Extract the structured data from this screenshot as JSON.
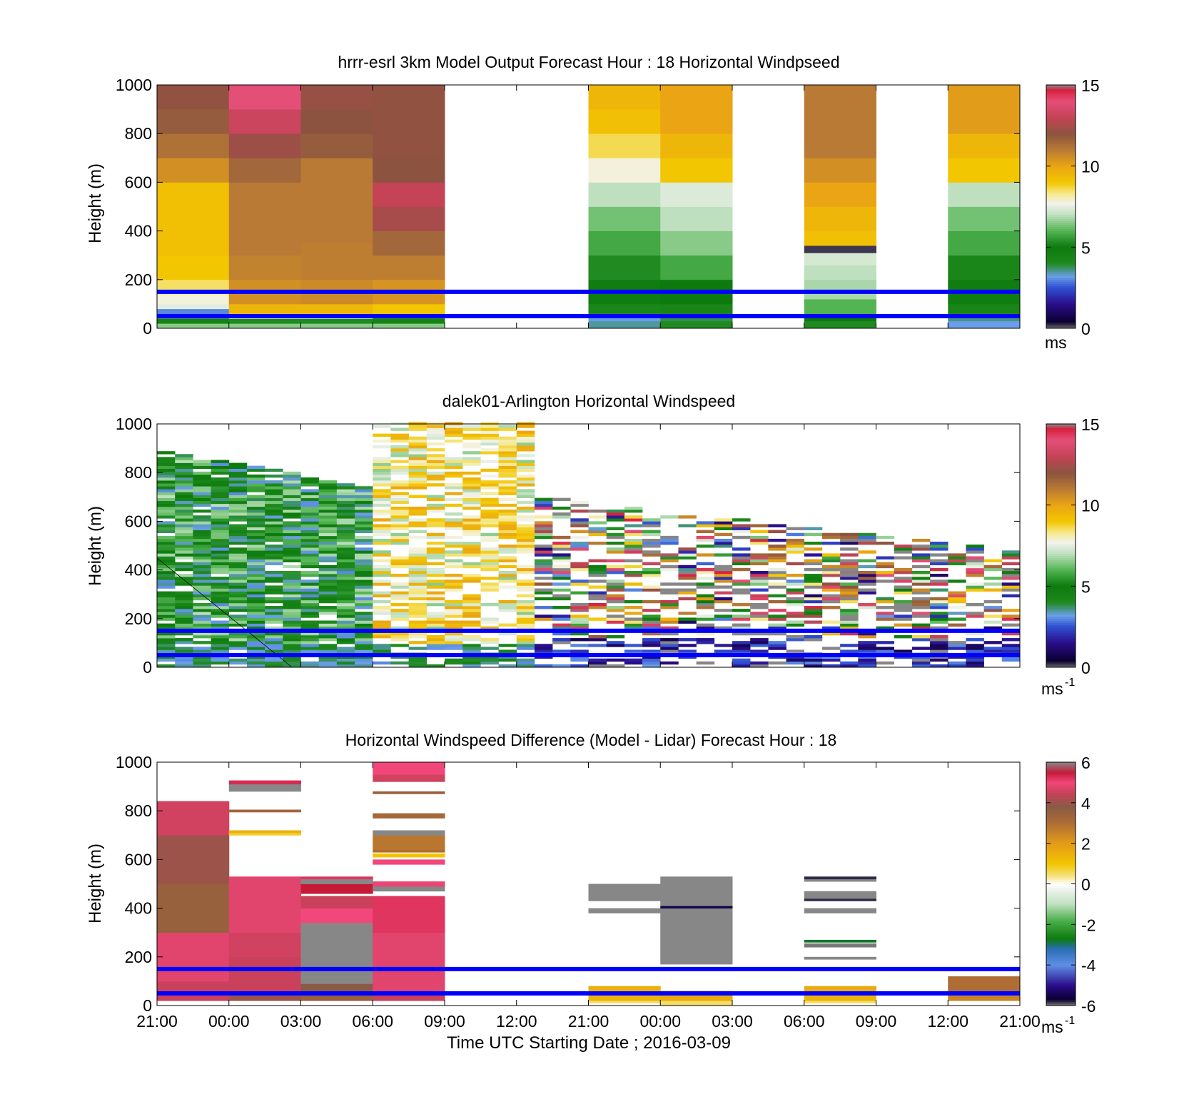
{
  "x_ticks": [
    "21:00",
    "00:00",
    "03:00",
    "06:00",
    "09:00",
    "12:00",
    "21:00",
    "00:00",
    "03:00",
    "06:00",
    "09:00",
    "12:00",
    "21:00"
  ],
  "x_label": "Time UTC  Starting Date ; 2016-03-09",
  "y_ticks": [
    "0",
    "200",
    "400",
    "600",
    "800",
    "1000"
  ],
  "reference_lines_height_m": [
    50,
    150
  ],
  "reference_line_color": "#0000ff",
  "chart_data": [
    {
      "type": "heatmap",
      "title": "hrrr-esrl 3km Model Output   Forecast Hour : 18 Horizontal Windpseed",
      "ylabel": "Height (m)",
      "ylim": [
        0,
        1000
      ],
      "colorbar": {
        "ticks": [
          "0",
          "5",
          "10",
          "15"
        ],
        "range": [
          0,
          15
        ],
        "unit": "ms"
      },
      "x_time_columns": [
        "21:00",
        "00:00",
        "03:00",
        "06:00",
        "09:00",
        "12:00",
        "21:00",
        "00:00",
        "03:00",
        "06:00",
        "09:00",
        "12:00"
      ],
      "columns": [
        {
          "segments": [
            [
              0,
              20,
              6.5
            ],
            [
              20,
              40,
              4.5
            ],
            [
              40,
              60,
              3.5
            ],
            [
              60,
              80,
              3.0
            ],
            [
              80,
              100,
              7.5
            ],
            [
              100,
              140,
              7.8
            ],
            [
              140,
              200,
              8.5
            ],
            [
              200,
              300,
              9.0
            ],
            [
              300,
              600,
              9.2
            ],
            [
              600,
              700,
              10.5
            ],
            [
              700,
              800,
              11.2
            ],
            [
              800,
              900,
              11.8
            ],
            [
              900,
              1000,
              12.1
            ]
          ]
        },
        {
          "segments": [
            [
              0,
              20,
              6.5
            ],
            [
              20,
              40,
              4.0
            ],
            [
              40,
              60,
              8.0
            ],
            [
              60,
              100,
              9.5
            ],
            [
              100,
              200,
              10.5
            ],
            [
              200,
              300,
              10.8
            ],
            [
              300,
              600,
              11.0
            ],
            [
              600,
              700,
              11.5
            ],
            [
              700,
              800,
              12.3
            ],
            [
              800,
              900,
              13.2
            ],
            [
              900,
              1000,
              14.0
            ]
          ]
        },
        {
          "segments": [
            [
              0,
              20,
              6.5
            ],
            [
              20,
              40,
              4.0
            ],
            [
              40,
              60,
              7.5
            ],
            [
              60,
              100,
              9.5
            ],
            [
              100,
              200,
              10.6
            ],
            [
              200,
              350,
              10.9
            ],
            [
              350,
              700,
              11.0
            ],
            [
              700,
              800,
              11.8
            ],
            [
              800,
              900,
              12.0
            ],
            [
              900,
              1000,
              12.2
            ]
          ]
        },
        {
          "segments": [
            [
              0,
              20,
              6.5
            ],
            [
              20,
              40,
              4.5
            ],
            [
              40,
              60,
              5.5
            ],
            [
              60,
              100,
              9.0
            ],
            [
              100,
              200,
              10.4
            ],
            [
              200,
              300,
              10.9
            ],
            [
              300,
              400,
              11.5
            ],
            [
              400,
              500,
              12.5
            ],
            [
              500,
              600,
              13.0
            ],
            [
              600,
              700,
              12.0
            ],
            [
              700,
              1000,
              12.1
            ]
          ]
        },
        {
          "segments": []
        },
        {
          "segments": []
        },
        {
          "segments": [
            [
              0,
              30,
              3.5
            ],
            [
              30,
              60,
              3.2
            ],
            [
              60,
              100,
              4.2
            ],
            [
              100,
              200,
              4.8
            ],
            [
              200,
              300,
              5.3
            ],
            [
              300,
              400,
              5.8
            ],
            [
              400,
              500,
              6.3
            ],
            [
              500,
              600,
              7.0
            ],
            [
              600,
              700,
              7.8
            ],
            [
              700,
              800,
              8.6
            ],
            [
              800,
              900,
              9.2
            ],
            [
              900,
              1000,
              9.5
            ]
          ]
        },
        {
          "segments": [
            [
              0,
              30,
              4.0
            ],
            [
              30,
              60,
              3.8
            ],
            [
              60,
              100,
              4.3
            ],
            [
              100,
              200,
              5.0
            ],
            [
              200,
              300,
              5.8
            ],
            [
              300,
              400,
              6.5
            ],
            [
              400,
              500,
              7.0
            ],
            [
              500,
              600,
              7.4
            ],
            [
              600,
              700,
              9.0
            ],
            [
              700,
              800,
              9.5
            ],
            [
              800,
              1000,
              10.0
            ]
          ]
        },
        {
          "segments": []
        },
        {
          "segments": [
            [
              0,
              30,
              4.0
            ],
            [
              30,
              60,
              5.0
            ],
            [
              60,
              120,
              6.0
            ],
            [
              120,
              200,
              6.8
            ],
            [
              200,
              260,
              7.0
            ],
            [
              260,
              310,
              7.3
            ],
            [
              310,
              340,
              0.2
            ],
            [
              340,
              400,
              9.2
            ],
            [
              400,
              500,
              9.5
            ],
            [
              500,
              600,
              10.0
            ],
            [
              600,
              700,
              10.5
            ],
            [
              700,
              1000,
              11.0
            ]
          ]
        },
        {
          "segments": []
        },
        {
          "segments": [
            [
              0,
              30,
              3.2
            ],
            [
              30,
              60,
              3.6
            ],
            [
              60,
              100,
              4.3
            ],
            [
              100,
              200,
              4.8
            ],
            [
              200,
              300,
              5.2
            ],
            [
              300,
              400,
              5.8
            ],
            [
              400,
              500,
              6.3
            ],
            [
              500,
              600,
              7.0
            ],
            [
              600,
              700,
              9.0
            ],
            [
              700,
              800,
              9.5
            ],
            [
              800,
              1000,
              10.2
            ]
          ]
        }
      ]
    },
    {
      "type": "heatmap",
      "title": "dalek01-Arlington  Horizontal Windspeed",
      "ylabel": "Height (m)",
      "ylim": [
        0,
        1000
      ],
      "colorbar": {
        "ticks": [
          "0",
          "5",
          "10",
          "15"
        ],
        "range": [
          0,
          15
        ],
        "unit": "ms-1"
      },
      "description_of_regimes": [
        {
          "time_span": [
            "21:00",
            "06:00"
          ],
          "height_top_m": 700,
          "speed_range_ms": [
            3,
            7
          ]
        },
        {
          "time_span": [
            "06:00",
            "12:00"
          ],
          "height_top_m": 1000,
          "speed_range_ms": [
            6,
            10
          ]
        },
        {
          "time_span": [
            "12:00",
            "12:00 (day 2)"
          ],
          "height_top_m": 700,
          "speed_range_ms": [
            1,
            15
          ]
        }
      ]
    },
    {
      "type": "heatmap",
      "title": "Horizontal Windspeed Difference (Model - Lidar) Forecast Hour : 18",
      "ylabel": "Height (m)",
      "xlabel": "Time UTC  Starting Date ; 2016-03-09",
      "ylim": [
        0,
        1000
      ],
      "colorbar": {
        "ticks": [
          "-6",
          "-4",
          "-2",
          "0",
          "2",
          "4",
          "6"
        ],
        "range": [
          -6,
          6
        ],
        "unit": "ms-1"
      },
      "columns": [
        {
          "segments": [
            [
              20,
              100,
              4.5
            ],
            [
              100,
              300,
              4.8
            ],
            [
              300,
              500,
              3.5
            ],
            [
              500,
              700,
              4.0
            ],
            [
              700,
              840,
              4.6
            ]
          ]
        },
        {
          "segments": [
            [
              20,
              60,
              4.0
            ],
            [
              60,
              200,
              4.5
            ],
            [
              200,
              300,
              4.6
            ],
            [
              300,
              530,
              4.8
            ],
            [
              700,
              710,
              0.8
            ],
            [
              710,
              720,
              1.5
            ],
            [
              795,
              805,
              3.3
            ],
            [
              880,
              910,
              6.0
            ],
            [
              910,
              925,
              5.3
            ]
          ]
        },
        {
          "segments": [
            [
              20,
              60,
              3.5
            ],
            [
              60,
              90,
              3.8
            ],
            [
              90,
              120,
              6.0
            ],
            [
              120,
              160,
              6.2
            ],
            [
              160,
              340,
              6.0
            ],
            [
              340,
              400,
              5.0
            ],
            [
              400,
              450,
              4.5
            ],
            [
              460,
              500,
              5.5
            ],
            [
              500,
              520,
              6.0
            ],
            [
              520,
              530,
              5.2
            ]
          ]
        },
        {
          "segments": [
            [
              20,
              60,
              4.5
            ],
            [
              60,
              300,
              4.8
            ],
            [
              300,
              450,
              5.2
            ],
            [
              470,
              490,
              6.0
            ],
            [
              490,
              510,
              4.9
            ],
            [
              580,
              600,
              5.0
            ],
            [
              610,
              625,
              1.0
            ],
            [
              630,
              640,
              3.0
            ],
            [
              640,
              700,
              2.8
            ],
            [
              700,
              720,
              6.0
            ],
            [
              770,
              790,
              3.2
            ],
            [
              870,
              880,
              3.5
            ],
            [
              920,
              950,
              4.6
            ],
            [
              950,
              1000,
              5.0
            ]
          ]
        },
        {
          "segments": []
        },
        {
          "segments": []
        },
        {
          "segments": [
            [
              10,
              20,
              0.5
            ],
            [
              20,
              60,
              1.4
            ],
            [
              60,
              80,
              1.5
            ],
            [
              380,
              400,
              6.0
            ],
            [
              430,
              500,
              6.0
            ]
          ]
        },
        {
          "segments": [
            [
              0,
              20,
              0.5
            ],
            [
              20,
              50,
              1.6
            ],
            [
              50,
              60,
              2.0
            ],
            [
              170,
              400,
              6.0
            ],
            [
              400,
              410,
              -5.5
            ],
            [
              410,
              530,
              6.0
            ]
          ]
        },
        {
          "segments": []
        },
        {
          "segments": [
            [
              10,
              20,
              0.5
            ],
            [
              20,
              60,
              1.4
            ],
            [
              60,
              80,
              1.6
            ],
            [
              190,
              200,
              6.0
            ],
            [
              240,
              255,
              -6.0
            ],
            [
              260,
              270,
              -2.8
            ],
            [
              380,
              400,
              6.0
            ],
            [
              430,
              440,
              -5.8
            ],
            [
              440,
              470,
              6.0
            ],
            [
              510,
              520,
              6.0
            ],
            [
              520,
              530,
              -5.8
            ]
          ]
        },
        {
          "segments": []
        },
        {
          "segments": [
            [
              20,
              60,
              2.5
            ],
            [
              60,
              120,
              3.0
            ]
          ]
        }
      ]
    }
  ]
}
